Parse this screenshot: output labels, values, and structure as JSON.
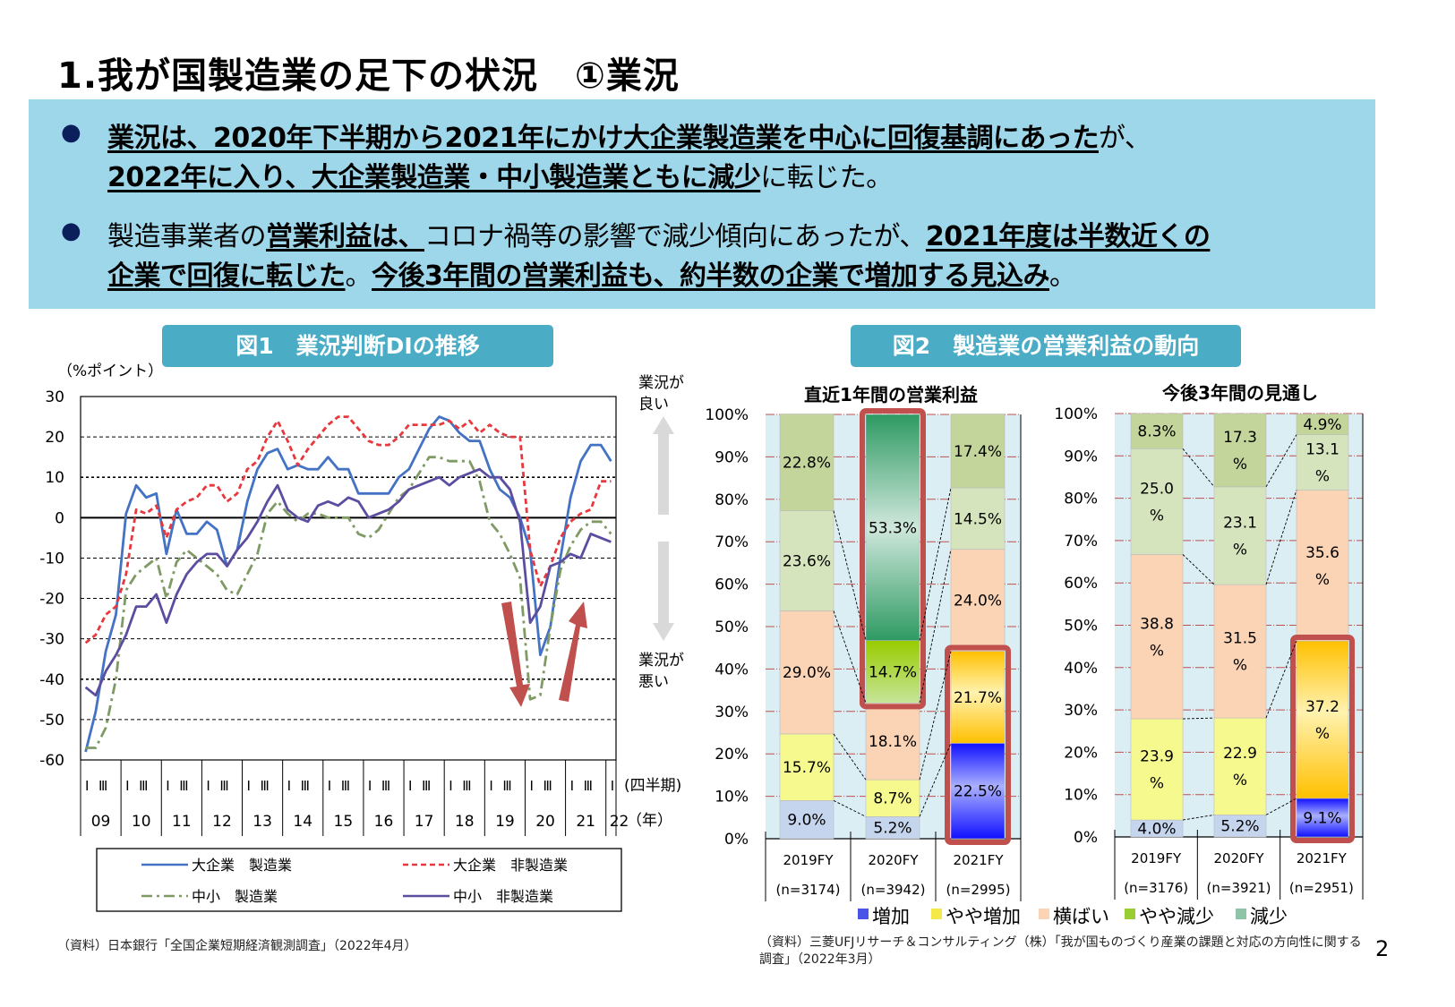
{
  "title": "1.我が国製造業の足下の状況　①業況",
  "summary": {
    "bullet_icon": "●",
    "bullets": [
      {
        "lines": [
          [
            {
              "text": "業況は、2020年下半期から2021年にかけ大企業製造業を中心に回復基調にあった",
              "bold": true
            },
            {
              "text": "が、",
              "bold": false
            }
          ],
          [
            {
              "text": "2022年に入り、大企業製造業・中小製造業ともに減少",
              "bold": true
            },
            {
              "text": "に転じた。",
              "bold": false
            }
          ]
        ]
      },
      {
        "lines": [
          [
            {
              "text": "製造事業者の",
              "bold": false
            },
            {
              "text": "営業利益は、",
              "bold": true
            },
            {
              "text": "コロナ禍等の影響で減少傾向にあったが、",
              "bold": false
            },
            {
              "text": "2021年度は半数近くの",
              "bold": true
            }
          ],
          [
            {
              "text": "企業で回復に転じた",
              "bold": true
            },
            {
              "text": "。",
              "bold": false
            },
            {
              "text": "今後3年間の営業利益も、約半数の企業で増加する見込み",
              "bold": true
            },
            {
              "text": "。",
              "bold": false
            }
          ]
        ]
      }
    ]
  },
  "fig1": {
    "heading": "図1　業況判断DIの推移",
    "good_label": "業況が\n良い",
    "bad_label": "業況が\n悪い",
    "source": "（資料）日本銀行「全国企業短期経済観測調査」（2022年4月）"
  },
  "fig2": {
    "heading": "図2　製造業の営業利益の動向",
    "source_line1": "（資料）三菱UFJリサーチ＆コンサルティング（株）「我が国ものづくり産業の課題と対応の方向性に関する",
    "source_line2": "調査」（2022年3月）"
  },
  "page_number": "2",
  "chart_data": [
    {
      "type": "line",
      "ylabel": "（%ポイント）",
      "ylim": [
        -60,
        30
      ],
      "yticks": [
        30,
        20,
        10,
        0,
        -10,
        -20,
        -30,
        -40,
        -50,
        -60
      ],
      "grid": true,
      "quarter_labels": [
        "Ⅰ",
        "Ⅲ"
      ],
      "quarter_axis_label": "(四半期)",
      "year_axis_label": "（年）",
      "years": [
        "09",
        "10",
        "11",
        "12",
        "13",
        "14",
        "15",
        "16",
        "17",
        "18",
        "19",
        "20",
        "21",
        "22"
      ],
      "x_start": "2009 Q1",
      "x_end": "2022 Q1",
      "legend_placement": "bottom",
      "series": [
        {
          "name": "大企業　製造業",
          "color": "#4472c4",
          "dash": "solid",
          "values": [
            -58,
            -48,
            -33,
            -24,
            1,
            8,
            5,
            6,
            -9,
            2,
            -4,
            -4,
            -1,
            -3,
            -12,
            -8,
            4,
            12,
            16,
            17,
            12,
            13,
            12,
            12,
            15,
            12,
            12,
            6,
            6,
            6,
            6,
            10,
            12,
            17,
            22,
            25,
            24,
            21,
            19,
            19,
            12,
            7,
            5,
            0,
            -8,
            -34,
            -27,
            -10,
            5,
            14,
            18,
            18,
            14
          ]
        },
        {
          "name": "大企業　非製造業",
          "color": "#e8383d",
          "dash": "short",
          "values": [
            -31,
            -29,
            -24,
            -22,
            -14,
            2,
            1,
            3,
            -5,
            2,
            4,
            5,
            8,
            8,
            4,
            6,
            12,
            14,
            20,
            24,
            19,
            13,
            17,
            20,
            23,
            25,
            25,
            22,
            19,
            18,
            18,
            20,
            23,
            23,
            23,
            23,
            24,
            22,
            24,
            21,
            23,
            21,
            20,
            20,
            -8,
            -17,
            -12,
            -5,
            -1,
            1,
            2,
            9,
            9
          ]
        },
        {
          "name": "中小　製造業",
          "color": "#7f9a65",
          "dash": "long",
          "values": [
            -57,
            -57,
            -52,
            -40,
            -18,
            -14,
            -12,
            -10,
            -20,
            -11,
            -8,
            -10,
            -12,
            -14,
            -18,
            -19,
            -14,
            -9,
            1,
            4,
            1,
            -1,
            1,
            1,
            0,
            0,
            0,
            -4,
            -5,
            -3,
            1,
            5,
            7,
            11,
            15,
            15,
            14,
            14,
            14,
            9,
            -1,
            -4,
            -9,
            -15,
            -45,
            -44,
            -27,
            -13,
            -7,
            -3,
            -1,
            -1,
            -4
          ]
        },
        {
          "name": "中小　非製造業",
          "color": "#5b4ea0",
          "dash": "solid",
          "values": [
            -42,
            -44,
            -38,
            -34,
            -29,
            -22,
            -22,
            -19,
            -26,
            -19,
            -14,
            -11,
            -9,
            -9,
            -12,
            -8,
            -5,
            -1,
            4,
            8,
            2,
            0,
            -1,
            3,
            4,
            3,
            5,
            4,
            0,
            1,
            2,
            4,
            7,
            8,
            9,
            10,
            8,
            10,
            11,
            12,
            10,
            10,
            7,
            -1,
            -26,
            -22,
            -12,
            -11,
            -9,
            -10,
            -4,
            -5,
            -6
          ]
        }
      ]
    },
    {
      "type": "bar",
      "stacked": true,
      "title": "直近1年間の営業利益",
      "ylim": [
        0,
        100
      ],
      "yticks": [
        "0%",
        "10%",
        "20%",
        "30%",
        "40%",
        "50%",
        "60%",
        "70%",
        "80%",
        "90%",
        "100%"
      ],
      "categories": [
        "2019FY",
        "2020FY",
        "2021FY"
      ],
      "n_labels": [
        "(n=3174)",
        "(n=3942)",
        "(n=2995)"
      ],
      "series": [
        {
          "name": "増加",
          "values": [
            9.0,
            5.2,
            22.5
          ],
          "labels": [
            "9.0%",
            "5.2%",
            "22.5%"
          ]
        },
        {
          "name": "やや増加",
          "values": [
            15.7,
            8.7,
            21.7
          ],
          "labels": [
            "15.7%",
            "8.7%",
            "21.7%"
          ]
        },
        {
          "name": "横ばい",
          "values": [
            29.0,
            18.1,
            24.0
          ],
          "labels": [
            "29.0%",
            "18.1%",
            "24.0%"
          ]
        },
        {
          "name": "やや減少",
          "values": [
            23.6,
            14.7,
            14.5
          ],
          "labels": [
            "23.6%",
            "14.7%",
            "14.5%"
          ]
        },
        {
          "name": "減少",
          "values": [
            22.8,
            53.3,
            17.4
          ],
          "labels": [
            "22.8%",
            "53.3%",
            "17.4%"
          ]
        }
      ],
      "highlighted": [
        {
          "category": "2020FY",
          "series": [
            "やや減少",
            "減少"
          ]
        },
        {
          "category": "2021FY",
          "series": [
            "増加",
            "やや増加"
          ]
        }
      ]
    },
    {
      "type": "bar",
      "stacked": true,
      "title": "今後3年間の見通し",
      "ylim": [
        0,
        100
      ],
      "yticks": [
        "0%",
        "10%",
        "20%",
        "30%",
        "40%",
        "50%",
        "60%",
        "70%",
        "80%",
        "90%",
        "100%"
      ],
      "categories": [
        "2019FY",
        "2020FY",
        "2021FY"
      ],
      "n_labels": [
        "(n=3176)",
        "(n=3921)",
        "(n=2951)"
      ],
      "series": [
        {
          "name": "増加",
          "values": [
            4.0,
            5.2,
            9.1
          ],
          "labels": [
            "4.0%",
            "5.2%",
            "9.1%"
          ]
        },
        {
          "name": "やや増加",
          "values": [
            23.9,
            22.9,
            37.2
          ],
          "labels": [
            "23.9\n%",
            "22.9\n%",
            "37.2\n%"
          ]
        },
        {
          "name": "横ばい",
          "values": [
            38.8,
            31.5,
            35.6
          ],
          "labels": [
            "38.8\n%",
            "31.5\n%",
            "35.6\n%"
          ]
        },
        {
          "name": "やや減少",
          "values": [
            25.0,
            23.1,
            13.1
          ],
          "labels": [
            "25.0\n%",
            "23.1\n%",
            "13.1\n%"
          ]
        },
        {
          "name": "減少",
          "values": [
            8.3,
            17.3,
            4.9
          ],
          "labels": [
            "8.3%",
            "17.3\n%",
            "4.9%"
          ]
        }
      ],
      "highlighted": [
        {
          "category": "2021FY",
          "series": [
            "増加",
            "やや増加"
          ]
        }
      ]
    }
  ],
  "fig2_legend": [
    {
      "label": "増加",
      "color": "#4a55e8"
    },
    {
      "label": "やや増加",
      "color": "#f5e84a"
    },
    {
      "label": "横ばい",
      "color": "#fbd3b5"
    },
    {
      "label": "やや減少",
      "color": "#9acd32"
    },
    {
      "label": "減少",
      "color": "#8fc4a8"
    }
  ],
  "colors": {
    "increase": "#c5d5ee",
    "slight_increase": "#f6fa8e",
    "flat": "#fbd3b5",
    "slight_decrease": "#d6e4bd",
    "decrease": "#c3d59b",
    "highlight_border": "#c0504d",
    "banner": "#9fd7ea",
    "heading": "#4bacc6"
  }
}
